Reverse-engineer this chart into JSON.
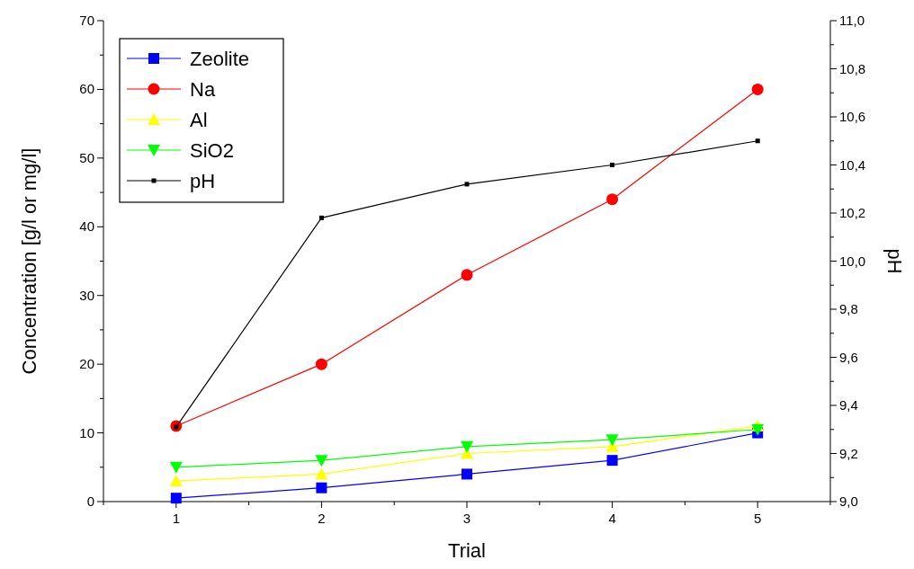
{
  "chart_data": {
    "type": "line",
    "xlabel": "Trial",
    "ylabel": "Concentration [g/l or mg/l]",
    "y2label": "pH",
    "x": [
      1,
      2,
      3,
      4,
      5
    ],
    "xlim": [
      0.5,
      5.5
    ],
    "xticks": [
      {
        "value": 0.5,
        "label": null
      },
      1,
      {
        "value": 1.5,
        "label": null
      },
      2,
      {
        "value": 2.5,
        "label": null
      },
      3,
      {
        "value": 3.5,
        "label": null
      },
      4,
      {
        "value": 4.5,
        "label": null
      },
      5,
      {
        "value": 5.5,
        "label": null
      }
    ],
    "ylim": [
      0,
      70
    ],
    "yticks": [
      0,
      {
        "value": 5,
        "label": null
      },
      10,
      {
        "value": 15,
        "label": null
      },
      20,
      {
        "value": 25,
        "label": null
      },
      30,
      {
        "value": 35,
        "label": null
      },
      40,
      {
        "value": 45,
        "label": null
      },
      50,
      {
        "value": 55,
        "label": null
      },
      60,
      {
        "value": 65,
        "label": null
      },
      70
    ],
    "y2lim": [
      9.0,
      11.0
    ],
    "y2ticks": [
      {
        "value": 9.0,
        "label": "9,0"
      },
      {
        "value": 9.1,
        "label": null
      },
      {
        "value": 9.2,
        "label": "9,2"
      },
      {
        "value": 9.3,
        "label": null
      },
      {
        "value": 9.4,
        "label": "9,4"
      },
      {
        "value": 9.5,
        "label": null
      },
      {
        "value": 9.6,
        "label": "9,6"
      },
      {
        "value": 9.7,
        "label": null
      },
      {
        "value": 9.8,
        "label": "9,8"
      },
      {
        "value": 9.9,
        "label": null
      },
      {
        "value": 10.0,
        "label": "10,0"
      },
      {
        "value": 10.1,
        "label": null
      },
      {
        "value": 10.2,
        "label": "10,2"
      },
      {
        "value": 10.3,
        "label": null
      },
      {
        "value": 10.4,
        "label": "10,4"
      },
      {
        "value": 10.5,
        "label": null
      },
      {
        "value": 10.6,
        "label": "10,6"
      },
      {
        "value": 10.7,
        "label": null
      },
      {
        "value": 10.8,
        "label": "10,8"
      },
      {
        "value": 10.9,
        "label": null
      },
      {
        "value": 11.0,
        "label": "11,0"
      }
    ],
    "legend": "top left",
    "grid": false,
    "series": [
      {
        "name": "Zeolite",
        "color": "#0000ff",
        "marker": "square",
        "values": [
          0.5,
          2,
          4,
          6,
          10
        ]
      },
      {
        "name": "Na",
        "color": "#ff0000",
        "marker": "circle",
        "values": [
          11,
          20,
          33,
          44,
          60
        ]
      },
      {
        "name": "Al",
        "color": "#ffff00",
        "marker": "triangle",
        "values": [
          3,
          4,
          7,
          8,
          11
        ]
      },
      {
        "name": "SiO2",
        "color": "#00ff00",
        "marker": "triangle-down",
        "values": [
          5,
          6,
          8,
          9,
          10.5
        ]
      },
      {
        "name": "pH",
        "color": "#000000",
        "marker": "square",
        "axis": "y2",
        "values": [
          9.31,
          10.18,
          10.32,
          10.4,
          10.5
        ]
      }
    ]
  }
}
